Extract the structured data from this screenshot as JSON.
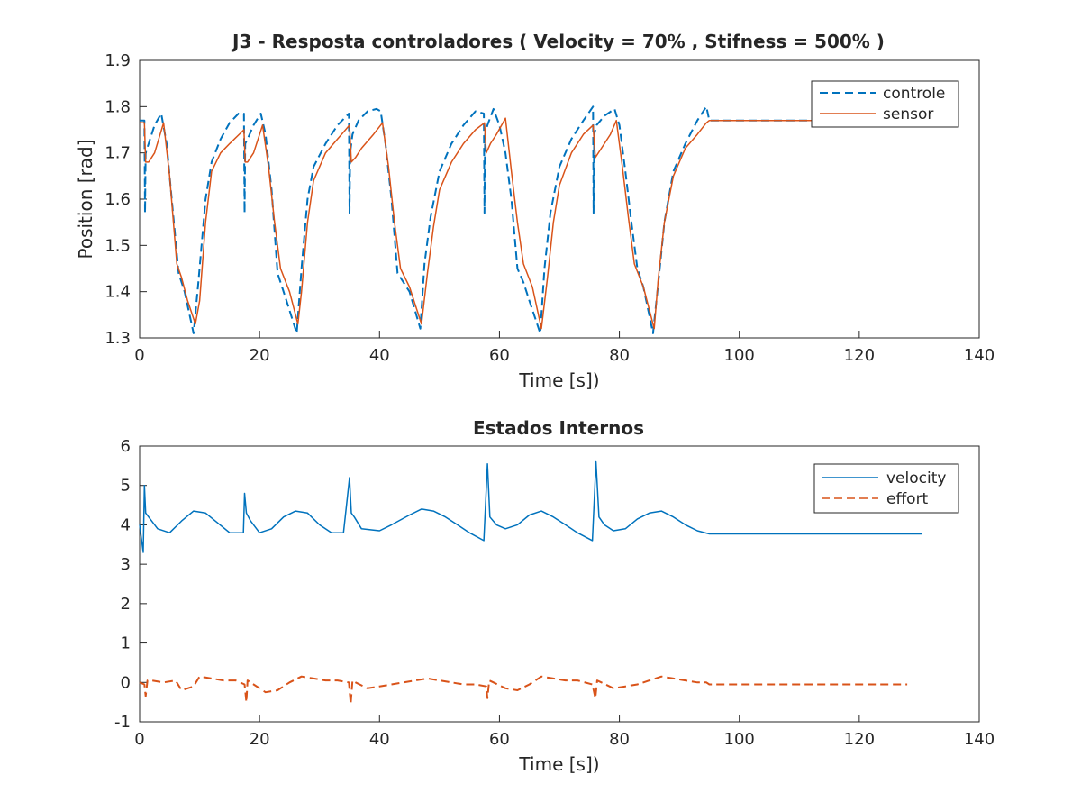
{
  "figure": {
    "plots": [
      {
        "id": "top",
        "title": "J3 - Resposta controladores ( Velocity = 70% , Stifness = 500% )",
        "xlabel": "Time [s])",
        "ylabel": "Position [rad]",
        "xlim": [
          0,
          140
        ],
        "ylim": [
          1.3,
          1.9
        ],
        "xticks": [
          "0",
          "20",
          "40",
          "60",
          "80",
          "100",
          "120",
          "140"
        ],
        "yticks": [
          "1.3",
          "1.4",
          "1.5",
          "1.6",
          "1.7",
          "1.8",
          "1.9"
        ],
        "legend": {
          "position": "top-right",
          "items": [
            "controle",
            "sensor"
          ]
        }
      },
      {
        "id": "bottom",
        "title": "Estados Internos",
        "xlabel": "Time [s])",
        "ylabel": "",
        "xlim": [
          0,
          140
        ],
        "ylim": [
          -1,
          6
        ],
        "xticks": [
          "0",
          "20",
          "40",
          "60",
          "80",
          "100",
          "120",
          "140"
        ],
        "yticks": [
          "-1",
          "0",
          "1",
          "2",
          "3",
          "4",
          "5",
          "6"
        ],
        "legend": {
          "position": "top-right",
          "items": [
            "velocity",
            "effort"
          ]
        }
      }
    ]
  },
  "chart_data": [
    {
      "type": "line",
      "title": "J3 - Resposta controladores ( Velocity = 70% , Stifness = 500% )",
      "xlabel": "Time [s])",
      "ylabel": "Position [rad]",
      "xlim": [
        0,
        140
      ],
      "ylim": [
        1.3,
        1.9
      ],
      "grid": false,
      "legend": "top-right",
      "series": [
        {
          "name": "controle",
          "color": "#0072BD",
          "style": "dashed",
          "x": [
            0,
            0.8,
            0.9,
            1.0,
            1.5,
            2.5,
            3.6,
            4.5,
            5.5,
            6.5,
            7.5,
            9.0,
            9.8,
            11,
            12,
            13.5,
            15,
            16.5,
            17.4,
            17.5,
            17.6,
            18,
            19,
            20.2,
            21,
            22,
            23,
            24.5,
            26.2,
            27,
            28,
            29,
            31,
            33,
            34.9,
            35.0,
            35.1,
            35.5,
            36.5,
            38,
            39.5,
            40.2,
            41,
            42,
            43,
            45,
            46.8,
            47.5,
            48.5,
            50,
            52,
            54,
            56,
            57.4,
            57.5,
            57.6,
            58,
            59,
            60,
            61,
            62,
            63,
            64,
            65,
            66.8,
            67.5,
            68.5,
            70,
            72,
            74,
            75.6,
            75.7,
            75.8,
            76.2,
            77.5,
            79.2,
            80,
            81,
            82,
            83,
            84,
            85.6,
            86.5,
            87.5,
            89,
            91,
            93,
            94.5,
            95,
            130
          ],
          "y": [
            1.77,
            1.77,
            1.57,
            1.7,
            1.72,
            1.76,
            1.785,
            1.72,
            1.58,
            1.44,
            1.4,
            1.31,
            1.42,
            1.6,
            1.68,
            1.73,
            1.765,
            1.785,
            1.785,
            1.57,
            1.72,
            1.73,
            1.76,
            1.785,
            1.74,
            1.62,
            1.44,
            1.38,
            1.31,
            1.45,
            1.6,
            1.67,
            1.72,
            1.76,
            1.785,
            1.57,
            1.7,
            1.74,
            1.77,
            1.79,
            1.795,
            1.79,
            1.72,
            1.6,
            1.44,
            1.4,
            1.32,
            1.46,
            1.56,
            1.66,
            1.72,
            1.76,
            1.79,
            1.785,
            1.57,
            1.74,
            1.76,
            1.795,
            1.76,
            1.7,
            1.6,
            1.45,
            1.42,
            1.38,
            1.31,
            1.45,
            1.57,
            1.67,
            1.73,
            1.77,
            1.8,
            1.57,
            1.74,
            1.76,
            1.78,
            1.795,
            1.76,
            1.66,
            1.55,
            1.45,
            1.41,
            1.31,
            1.42,
            1.55,
            1.66,
            1.72,
            1.77,
            1.8,
            1.77,
            1.77
          ]
        },
        {
          "name": "sensor",
          "color": "#D95319",
          "style": "solid",
          "x": [
            0,
            0.8,
            1.0,
            1.5,
            2.5,
            4.0,
            5.0,
            6.2,
            7.0,
            8.0,
            9.3,
            10,
            11,
            12,
            13.5,
            15,
            17.4,
            17.6,
            18,
            19,
            20.5,
            21.5,
            22.5,
            23.5,
            25,
            26.4,
            27,
            28,
            29,
            31,
            33,
            35.0,
            35.3,
            36,
            37,
            39,
            40.5,
            41.5,
            42.5,
            43.5,
            45,
            47,
            48,
            49,
            50,
            52,
            54,
            56,
            57.5,
            57.8,
            58.5,
            59.5,
            61,
            62,
            63,
            64,
            65.5,
            67,
            68,
            69,
            70,
            72,
            74,
            75.6,
            76,
            77,
            78.5,
            79.5,
            80.5,
            81.5,
            82.5,
            84,
            85.8,
            86.5,
            87.5,
            89,
            91,
            93,
            94.5,
            95,
            130
          ],
          "y": [
            1.765,
            1.765,
            1.68,
            1.68,
            1.7,
            1.765,
            1.65,
            1.46,
            1.43,
            1.38,
            1.33,
            1.38,
            1.55,
            1.66,
            1.7,
            1.72,
            1.75,
            1.68,
            1.68,
            1.7,
            1.76,
            1.67,
            1.55,
            1.45,
            1.4,
            1.33,
            1.4,
            1.55,
            1.64,
            1.7,
            1.73,
            1.76,
            1.68,
            1.69,
            1.71,
            1.74,
            1.765,
            1.67,
            1.55,
            1.45,
            1.41,
            1.33,
            1.44,
            1.54,
            1.62,
            1.68,
            1.72,
            1.75,
            1.765,
            1.7,
            1.72,
            1.74,
            1.775,
            1.66,
            1.55,
            1.46,
            1.41,
            1.32,
            1.43,
            1.55,
            1.63,
            1.7,
            1.74,
            1.76,
            1.69,
            1.71,
            1.74,
            1.77,
            1.67,
            1.56,
            1.46,
            1.41,
            1.32,
            1.43,
            1.55,
            1.65,
            1.71,
            1.74,
            1.765,
            1.77,
            1.77
          ]
        }
      ]
    },
    {
      "type": "line",
      "title": "Estados Internos",
      "xlabel": "Time [s])",
      "ylabel": "",
      "xlim": [
        0,
        140
      ],
      "ylim": [
        -1,
        6
      ],
      "grid": false,
      "legend": "top-right",
      "series": [
        {
          "name": "velocity",
          "color": "#0072BD",
          "style": "solid",
          "x": [
            0,
            0.6,
            0.8,
            1.0,
            1.5,
            3,
            5,
            7,
            9,
            11,
            13,
            15,
            17.3,
            17.5,
            17.8,
            18.5,
            20,
            22,
            24,
            26,
            28,
            30,
            32,
            34,
            35.0,
            35.3,
            35.8,
            37,
            40,
            42,
            45,
            47,
            49,
            51,
            53,
            55,
            57.4,
            58.0,
            58.4,
            59.5,
            61,
            63,
            65,
            67,
            69,
            71,
            73,
            75.5,
            76.1,
            76.6,
            77.5,
            79,
            81,
            83,
            85,
            87,
            89,
            91,
            93,
            95,
            130.5
          ],
          "y": [
            4.0,
            3.3,
            5.0,
            4.3,
            4.2,
            3.9,
            3.8,
            4.1,
            4.35,
            4.3,
            4.05,
            3.8,
            3.8,
            4.8,
            4.3,
            4.1,
            3.8,
            3.9,
            4.2,
            4.35,
            4.3,
            4.0,
            3.8,
            3.8,
            5.2,
            4.3,
            4.2,
            3.9,
            3.85,
            4.0,
            4.25,
            4.4,
            4.35,
            4.2,
            4.0,
            3.8,
            3.6,
            5.55,
            4.2,
            4.0,
            3.9,
            4.0,
            4.25,
            4.35,
            4.2,
            4.0,
            3.8,
            3.6,
            5.6,
            4.2,
            4.0,
            3.85,
            3.9,
            4.15,
            4.3,
            4.35,
            4.2,
            4.0,
            3.85,
            3.77,
            3.77
          ]
        },
        {
          "name": "effort",
          "color": "#D95319",
          "style": "dashed",
          "x": [
            0,
            0.8,
            1.0,
            1.3,
            2,
            4,
            6,
            7,
            9,
            10,
            12,
            14,
            16,
            17.5,
            17.8,
            18,
            19,
            21,
            23,
            25,
            27,
            29,
            31,
            33,
            34.9,
            35.2,
            35.5,
            36,
            38,
            40,
            42,
            44,
            46,
            48,
            50,
            52,
            54,
            56,
            57.8,
            58.0,
            58.3,
            59,
            61,
            63,
            65,
            67,
            69,
            71,
            73,
            75.5,
            76.0,
            76.3,
            77,
            79,
            81,
            83,
            85,
            87,
            89,
            91,
            93,
            94.5,
            95,
            128
          ],
          "y": [
            0,
            -0.05,
            -0.35,
            0.05,
            0.05,
            0.0,
            0.05,
            -0.2,
            -0.1,
            0.15,
            0.1,
            0.05,
            0.05,
            -0.05,
            -0.5,
            0.05,
            -0.05,
            -0.25,
            -0.2,
            0.0,
            0.15,
            0.1,
            0.05,
            0.05,
            0.0,
            -0.55,
            0.05,
            0.0,
            -0.15,
            -0.1,
            -0.05,
            0.0,
            0.05,
            0.1,
            0.05,
            0.0,
            -0.05,
            -0.05,
            -0.1,
            -0.4,
            0.05,
            0.0,
            -0.15,
            -0.2,
            -0.05,
            0.15,
            0.1,
            0.05,
            0.05,
            -0.05,
            -0.4,
            0.05,
            0.0,
            -0.15,
            -0.1,
            -0.05,
            0.05,
            0.15,
            0.1,
            0.05,
            0.0,
            0.0,
            -0.05,
            -0.05
          ]
        }
      ]
    }
  ]
}
